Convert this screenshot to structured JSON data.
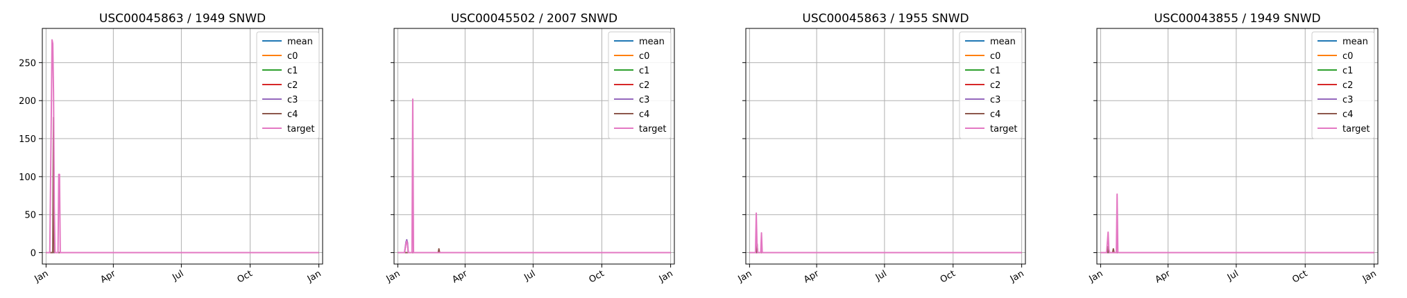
{
  "chart_data": [
    {
      "type": "line",
      "title": "USC00045863 / 1949    SNWD",
      "xlabel": "",
      "ylabel": "",
      "x_ticks": [
        "Jan",
        "Apr",
        "Jul",
        "Oct",
        "Jan"
      ],
      "y_ticks": [
        "0",
        "50",
        "100",
        "150",
        "200",
        "250"
      ],
      "xlim": [
        -5,
        370
      ],
      "ylim": [
        -15,
        295
      ],
      "grid": true,
      "legend_position": "top-right",
      "series": [
        {
          "name": "mean",
          "color": "#1f77b4",
          "points": [
            [
              0,
              0
            ],
            [
              365,
              0
            ]
          ]
        },
        {
          "name": "c0",
          "color": "#ff7f0e",
          "points": [
            [
              0,
              0
            ],
            [
              365,
              0
            ]
          ]
        },
        {
          "name": "c1",
          "color": "#2ca02c",
          "points": [
            [
              0,
              0
            ],
            [
              365,
              0
            ]
          ]
        },
        {
          "name": "c2",
          "color": "#d62728",
          "points": [
            [
              0,
              0
            ],
            [
              365,
              0
            ]
          ]
        },
        {
          "name": "c3",
          "color": "#9467bd",
          "points": [
            [
              0,
              0
            ],
            [
              365,
              0
            ]
          ]
        },
        {
          "name": "c4",
          "color": "#8c564b",
          "points": [
            [
              0,
              0
            ],
            [
              9,
              0
            ],
            [
              10,
              178
            ],
            [
              11,
              0
            ],
            [
              365,
              0
            ]
          ]
        },
        {
          "name": "target",
          "color": "#e377c2",
          "points": [
            [
              0,
              0
            ],
            [
              5,
              0
            ],
            [
              7,
              180
            ],
            [
              8,
              280
            ],
            [
              9,
              275
            ],
            [
              10,
              210
            ],
            [
              11,
              60
            ],
            [
              12,
              0
            ],
            [
              16,
              0
            ],
            [
              17,
              103
            ],
            [
              18,
              103
            ],
            [
              19,
              0
            ],
            [
              365,
              0
            ]
          ]
        }
      ]
    },
    {
      "type": "line",
      "title": "USC00045502 / 2007    SNWD",
      "xlabel": "",
      "ylabel": "",
      "x_ticks": [
        "Jan",
        "Apr",
        "Jul",
        "Oct",
        "Jan"
      ],
      "y_ticks": [
        "0",
        "50",
        "100",
        "150",
        "200",
        "250"
      ],
      "xlim": [
        -5,
        370
      ],
      "ylim": [
        -15,
        295
      ],
      "grid": true,
      "legend_position": "top-right",
      "series": [
        {
          "name": "mean",
          "color": "#1f77b4",
          "points": [
            [
              0,
              0
            ],
            [
              365,
              0
            ]
          ]
        },
        {
          "name": "c0",
          "color": "#ff7f0e",
          "points": [
            [
              0,
              0
            ],
            [
              365,
              0
            ]
          ]
        },
        {
          "name": "c1",
          "color": "#2ca02c",
          "points": [
            [
              0,
              0
            ],
            [
              365,
              0
            ]
          ]
        },
        {
          "name": "c2",
          "color": "#d62728",
          "points": [
            [
              0,
              0
            ],
            [
              365,
              0
            ]
          ]
        },
        {
          "name": "c3",
          "color": "#9467bd",
          "points": [
            [
              0,
              0
            ],
            [
              9,
              0
            ],
            [
              11,
              14
            ],
            [
              12,
              17
            ],
            [
              13,
              13
            ],
            [
              14,
              0
            ],
            [
              365,
              0
            ]
          ]
        },
        {
          "name": "c4",
          "color": "#8c564b",
          "points": [
            [
              0,
              0
            ],
            [
              54,
              0
            ],
            [
              55,
              5
            ],
            [
              56,
              0
            ],
            [
              365,
              0
            ]
          ]
        },
        {
          "name": "target",
          "color": "#e377c2",
          "points": [
            [
              0,
              0
            ],
            [
              9,
              0
            ],
            [
              11,
              12
            ],
            [
              12,
              15
            ],
            [
              13,
              10
            ],
            [
              14,
              0
            ],
            [
              19,
              0
            ],
            [
              20,
              202
            ],
            [
              21,
              0
            ],
            [
              365,
              0
            ]
          ]
        }
      ]
    },
    {
      "type": "line",
      "title": "USC00045863 / 1955    SNWD",
      "xlabel": "",
      "ylabel": "",
      "x_ticks": [
        "Jan",
        "Apr",
        "Jul",
        "Oct",
        "Jan"
      ],
      "y_ticks": [
        "0",
        "50",
        "100",
        "150",
        "200",
        "250"
      ],
      "xlim": [
        -5,
        370
      ],
      "ylim": [
        -15,
        295
      ],
      "grid": true,
      "legend_position": "top-right",
      "series": [
        {
          "name": "mean",
          "color": "#1f77b4",
          "points": [
            [
              0,
              0
            ],
            [
              365,
              0
            ]
          ]
        },
        {
          "name": "c0",
          "color": "#ff7f0e",
          "points": [
            [
              0,
              0
            ],
            [
              365,
              0
            ]
          ]
        },
        {
          "name": "c1",
          "color": "#2ca02c",
          "points": [
            [
              0,
              0
            ],
            [
              365,
              0
            ]
          ]
        },
        {
          "name": "c2",
          "color": "#d62728",
          "points": [
            [
              0,
              0
            ],
            [
              365,
              0
            ]
          ]
        },
        {
          "name": "c3",
          "color": "#9467bd",
          "points": [
            [
              0,
              0
            ],
            [
              365,
              0
            ]
          ]
        },
        {
          "name": "c4",
          "color": "#8c564b",
          "points": [
            [
              0,
              0
            ],
            [
              9,
              0
            ],
            [
              10,
              12
            ],
            [
              11,
              0
            ],
            [
              365,
              0
            ]
          ]
        },
        {
          "name": "target",
          "color": "#e377c2",
          "points": [
            [
              0,
              0
            ],
            [
              8,
              0
            ],
            [
              9,
              52
            ],
            [
              10,
              10
            ],
            [
              11,
              0
            ],
            [
              15,
              0
            ],
            [
              16,
              26
            ],
            [
              17,
              0
            ],
            [
              365,
              0
            ]
          ]
        }
      ]
    },
    {
      "type": "line",
      "title": "USC00043855 / 1949    SNWD",
      "xlabel": "",
      "ylabel": "",
      "x_ticks": [
        "Jan",
        "Apr",
        "Jul",
        "Oct",
        "Jan"
      ],
      "y_ticks": [
        "0",
        "50",
        "100",
        "150",
        "200",
        "250"
      ],
      "xlim": [
        -5,
        370
      ],
      "ylim": [
        -15,
        295
      ],
      "grid": true,
      "legend_position": "top-right",
      "series": [
        {
          "name": "mean",
          "color": "#1f77b4",
          "points": [
            [
              0,
              0
            ],
            [
              365,
              0
            ]
          ]
        },
        {
          "name": "c0",
          "color": "#ff7f0e",
          "points": [
            [
              0,
              0
            ],
            [
              365,
              0
            ]
          ]
        },
        {
          "name": "c1",
          "color": "#2ca02c",
          "points": [
            [
              0,
              0
            ],
            [
              365,
              0
            ]
          ]
        },
        {
          "name": "c2",
          "color": "#d62728",
          "points": [
            [
              0,
              0
            ],
            [
              365,
              0
            ]
          ]
        },
        {
          "name": "c3",
          "color": "#9467bd",
          "points": [
            [
              0,
              0
            ],
            [
              365,
              0
            ]
          ]
        },
        {
          "name": "c4",
          "color": "#8c564b",
          "points": [
            [
              0,
              0
            ],
            [
              9,
              0
            ],
            [
              10,
              8
            ],
            [
              11,
              0
            ],
            [
              16,
              0
            ],
            [
              17,
              5
            ],
            [
              18,
              0
            ],
            [
              365,
              0
            ]
          ]
        },
        {
          "name": "target",
          "color": "#e377c2",
          "points": [
            [
              0,
              0
            ],
            [
              8,
              0
            ],
            [
              10,
              27
            ],
            [
              11,
              5
            ],
            [
              12,
              0
            ],
            [
              21,
              0
            ],
            [
              22,
              77
            ],
            [
              23,
              0
            ],
            [
              365,
              0
            ]
          ]
        }
      ]
    }
  ]
}
